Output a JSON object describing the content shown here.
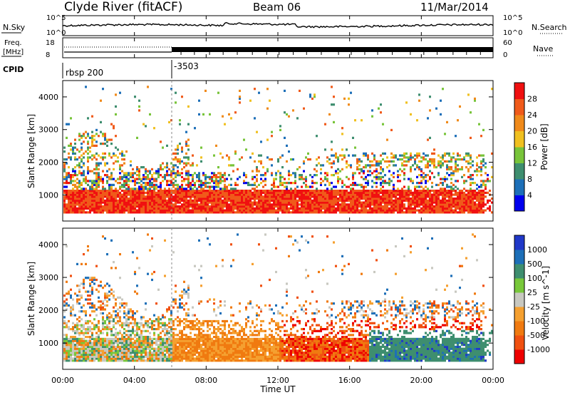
{
  "header": {
    "station": "Clyde River (fitACF)",
    "beam": "Beam 06",
    "date": "11/Mar/2014"
  },
  "status_panels": {
    "nsky_label": "N.Sky",
    "nsearch_label": "N.Search",
    "freq_label_line1": "Freq.",
    "freq_label_line2": "[MHz]",
    "nave_label": "Nave",
    "cpid_label": "CPID",
    "noise_left_ticks": [
      "10^5",
      "10^0"
    ],
    "noise_right_ticks": [
      "10^5",
      "10^0"
    ],
    "freq_left_ticks": [
      "18",
      "8"
    ],
    "freq_right_ticks": [
      "60",
      "0"
    ],
    "cpid_segments": [
      {
        "label": "rbsp 200",
        "start_hour": 0
      },
      {
        "label": "-3503",
        "start_hour": 6
      }
    ]
  },
  "colors": {
    "power_scale": [
      "#0000ee",
      "#1d6fb8",
      "#3e8e6f",
      "#78c43a",
      "#f0c020",
      "#f08a1a",
      "#f05a1a",
      "#f01010"
    ],
    "velocity_scale": [
      "#ee0000",
      "#f05010",
      "#f07a10",
      "#f5a030",
      "#c8c8c0",
      "#78c83a",
      "#3e8e6f",
      "#1d6fb8",
      "#2038c8"
    ]
  },
  "chart_data": [
    {
      "type": "heatmap",
      "name": "power",
      "xlabel": "Time UT",
      "ylabel": "Slant Range [km]",
      "x_ticks": [
        "00:00",
        "04:00",
        "08:00",
        "12:00",
        "16:00",
        "20:00",
        "00:00"
      ],
      "xlim": [
        0,
        24
      ],
      "ylim": [
        200,
        4500
      ],
      "y_ticks": [
        1000,
        2000,
        3000,
        4000
      ],
      "colorbar_label": "Power [dB]",
      "colorbar_ticks": [
        4,
        8,
        12,
        16,
        20,
        24,
        28
      ],
      "colorbar_range": [
        0,
        32
      ]
    },
    {
      "type": "heatmap",
      "name": "velocity",
      "xlabel": "Time UT",
      "ylabel": "Slant Range [km]",
      "x_ticks": [
        "00:00",
        "04:00",
        "08:00",
        "12:00",
        "16:00",
        "20:00",
        "00:00"
      ],
      "xlim": [
        0,
        24
      ],
      "ylim": [
        200,
        4500
      ],
      "y_ticks": [
        1000,
        2000,
        3000,
        4000
      ],
      "colorbar_label": "Velocity [m s^-1]",
      "colorbar_ticks": [
        1000,
        500,
        100,
        25,
        -25,
        -100,
        -500,
        -1000
      ]
    }
  ]
}
